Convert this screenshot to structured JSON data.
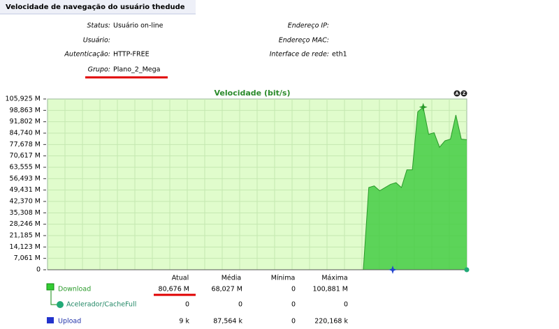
{
  "header": {
    "title": "Velocidade de navegação do usuário thedude"
  },
  "info": {
    "left": [
      {
        "label": "Status:",
        "value": "Usuário on-line"
      },
      {
        "label": "Usuário:"
      },
      {
        "label": "Autenticação:",
        "value": "HTTP-FREE"
      },
      {
        "label": "Grupo:",
        "value": "Plano_2_Mega"
      }
    ],
    "right": [
      {
        "label": "Endereço IP:"
      },
      {
        "label": "Endereço MAC:"
      },
      {
        "label": "Interface de rede:",
        "value": "eth1"
      }
    ]
  },
  "chart_data": {
    "type": "area",
    "title": "Velocidade (bit/s)",
    "zoom_buttons": [
      "A",
      "Z"
    ],
    "ylim": [
      0,
      105.925
    ],
    "yticks": [
      0,
      {
        "value": 7.061,
        "label": "7,061 M"
      },
      {
        "value": 14.123,
        "label": "14,123 M"
      },
      {
        "value": 21.185,
        "label": "21,185 M"
      },
      {
        "value": 28.246,
        "label": "28,246 M"
      },
      {
        "value": 35.308,
        "label": "35,308 M"
      },
      {
        "value": 42.37,
        "label": "42,370 M"
      },
      {
        "value": 49.431,
        "label": "49,431 M"
      },
      {
        "value": 56.493,
        "label": "56,493 M"
      },
      {
        "value": 63.555,
        "label": "63,555 M"
      },
      {
        "value": 70.617,
        "label": "70,617 M"
      },
      {
        "value": 77.678,
        "label": "77,678 M"
      },
      {
        "value": 84.74,
        "label": "84,740 M"
      },
      {
        "value": 91.802,
        "label": "91,802 M"
      },
      {
        "value": 98.863,
        "label": "98,863 M"
      },
      {
        "value": 105.925,
        "label": "105,925 M"
      }
    ],
    "grid": true,
    "series": [
      {
        "name": "Download",
        "color": "#44cc44",
        "values": [
          0,
          0,
          0,
          0,
          0,
          0,
          0,
          0,
          0,
          0,
          0,
          0,
          0,
          0,
          0,
          0,
          0,
          0,
          0,
          0,
          0,
          0,
          0,
          0,
          0,
          0,
          0,
          0,
          0,
          0,
          0,
          0,
          0,
          0,
          0,
          0,
          0,
          0,
          0,
          0,
          0,
          0,
          0,
          0,
          0,
          0,
          0,
          0,
          0,
          0,
          0,
          0,
          0,
          0,
          0,
          0,
          0,
          0,
          0,
          51,
          52,
          49,
          51,
          53,
          54,
          51,
          62,
          62,
          98,
          100.881,
          84,
          85,
          76,
          80,
          81,
          96,
          81,
          80.676
        ]
      }
    ]
  },
  "stats": {
    "columns": [
      "Atual",
      "Média",
      "Mínima",
      "Máxima"
    ],
    "rows": [
      {
        "values": [
          "80,676 M",
          "68,027 M",
          "0",
          "100,881 M"
        ]
      },
      {
        "name": "Acelerador/CacheFull",
        "values": [
          "0",
          "0",
          "0",
          "0"
        ]
      },
      {
        "name": "Upload",
        "values": [
          "9 k",
          "87,564 k",
          "0",
          "220,168 k"
        ]
      }
    ]
  }
}
